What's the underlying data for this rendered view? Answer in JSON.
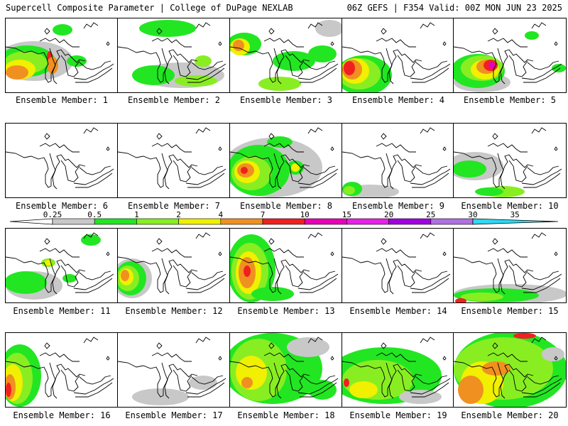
{
  "header": {
    "left": "Supercell Composite Parameter | College of DuPage NEXLAB",
    "right": "06Z GEFS | F354 Valid: 00Z MON JUN 23 2025"
  },
  "colors": {
    "c0": "#c8c8c8",
    "c1": "#22e622",
    "c2": "#88ee22",
    "c3": "#f0f000",
    "c4": "#f09020",
    "c5": "#f02020",
    "c6": "#e800b8",
    "c7": "#e820e8",
    "c8": "#a000e0",
    "c9": "#b070e0",
    "c10": "#30d8f0"
  },
  "legend": {
    "levels": [
      "0.25",
      "0.5",
      "1",
      "2",
      "4",
      "7",
      "10",
      "15",
      "20",
      "25",
      "30",
      "35"
    ]
  },
  "members": [
    {
      "label": "Ensemble Member: 1"
    },
    {
      "label": "Ensemble Member: 2"
    },
    {
      "label": "Ensemble Member: 3"
    },
    {
      "label": "Ensemble Member: 4"
    },
    {
      "label": "Ensemble Member: 5"
    },
    {
      "label": "Ensemble Member: 6"
    },
    {
      "label": "Ensemble Member: 7"
    },
    {
      "label": "Ensemble Member: 8"
    },
    {
      "label": "Ensemble Member: 9"
    },
    {
      "label": "Ensemble Member: 10"
    },
    {
      "label": "Ensemble Member: 11"
    },
    {
      "label": "Ensemble Member: 12"
    },
    {
      "label": "Ensemble Member: 13"
    },
    {
      "label": "Ensemble Member: 14"
    },
    {
      "label": "Ensemble Member: 15"
    },
    {
      "label": "Ensemble Member: 16"
    },
    {
      "label": "Ensemble Member: 17"
    },
    {
      "label": "Ensemble Member: 18"
    },
    {
      "label": "Ensemble Member: 19"
    },
    {
      "label": "Ensemble Member: 20"
    }
  ]
}
